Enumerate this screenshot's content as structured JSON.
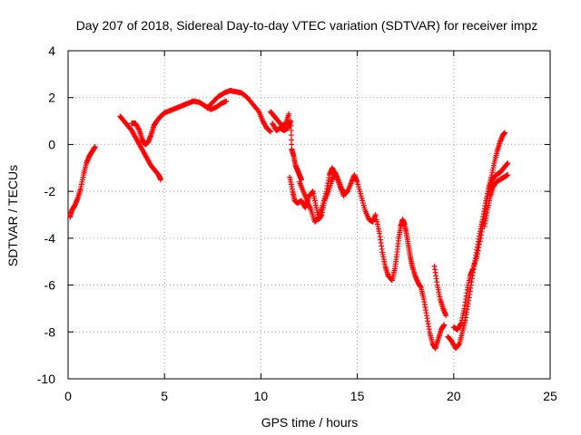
{
  "chart_data": {
    "type": "scatter",
    "title": "Day 207 of 2018, Sidereal Day-to-day VTEC variation (SDTVAR) for receiver impz",
    "xlabel": "GPS time / hours",
    "ylabel": "SDTVAR / TECUs",
    "xlim": [
      0,
      25
    ],
    "ylim": [
      -10,
      4
    ],
    "xticks": [
      0,
      5,
      10,
      15,
      20,
      25
    ],
    "yticks": [
      -10,
      -8,
      -6,
      -4,
      -2,
      0,
      2,
      4
    ],
    "grid": true,
    "marker": "+",
    "color": "#ff0000",
    "series": [
      {
        "segments": [
          [
            [
              0.1,
              -3.1
            ],
            [
              0.2,
              -2.8
            ],
            [
              0.35,
              -2.6
            ],
            [
              0.5,
              -2.3
            ],
            [
              0.65,
              -1.9
            ],
            [
              0.8,
              -1.3
            ],
            [
              0.95,
              -0.8
            ],
            [
              1.1,
              -0.5
            ],
            [
              1.25,
              -0.3
            ],
            [
              1.4,
              -0.1
            ]
          ],
          [
            [
              2.7,
              1.2
            ],
            [
              2.9,
              1.0
            ],
            [
              3.1,
              0.8
            ],
            [
              3.3,
              0.6
            ],
            [
              3.5,
              0.3
            ],
            [
              3.7,
              0.0
            ],
            [
              3.9,
              -0.3
            ],
            [
              4.1,
              -0.6
            ],
            [
              4.3,
              -0.9
            ],
            [
              4.5,
              -1.1
            ],
            [
              4.7,
              -1.3
            ],
            [
              4.8,
              -1.5
            ]
          ],
          [
            [
              3.3,
              0.9
            ],
            [
              3.5,
              0.9
            ],
            [
              3.7,
              0.6
            ],
            [
              3.85,
              0.2
            ],
            [
              4.0,
              0.0
            ],
            [
              4.15,
              0.1
            ],
            [
              4.3,
              0.4
            ],
            [
              4.45,
              0.8
            ],
            [
              4.6,
              1.0
            ],
            [
              4.8,
              1.2
            ],
            [
              5.0,
              1.35
            ],
            [
              5.3,
              1.45
            ],
            [
              5.6,
              1.55
            ],
            [
              5.9,
              1.65
            ],
            [
              6.2,
              1.75
            ],
            [
              6.5,
              1.85
            ],
            [
              6.8,
              1.8
            ],
            [
              7.1,
              1.65
            ],
            [
              7.4,
              1.5
            ],
            [
              7.7,
              1.6
            ],
            [
              7.95,
              1.75
            ],
            [
              8.2,
              1.85
            ]
          ],
          [
            [
              7.2,
              1.55
            ],
            [
              7.5,
              1.8
            ],
            [
              7.8,
              2.05
            ],
            [
              8.1,
              2.2
            ],
            [
              8.4,
              2.3
            ],
            [
              8.7,
              2.25
            ],
            [
              9.0,
              2.2
            ],
            [
              9.3,
              2.0
            ],
            [
              9.6,
              1.7
            ],
            [
              9.9,
              1.4
            ],
            [
              10.1,
              1.0
            ],
            [
              10.3,
              0.7
            ],
            [
              10.5,
              0.55
            ]
          ],
          [
            [
              10.5,
              1.4
            ],
            [
              10.7,
              1.2
            ],
            [
              10.9,
              1.0
            ],
            [
              11.1,
              0.8
            ],
            [
              11.3,
              0.9
            ],
            [
              11.45,
              1.3
            ]
          ],
          [
            [
              10.6,
              0.9
            ],
            [
              10.8,
              0.6
            ],
            [
              11.0,
              0.7
            ],
            [
              11.2,
              0.6
            ],
            [
              11.4,
              0.7
            ],
            [
              11.55,
              1.0
            ],
            [
              11.6,
              -0.2
            ],
            [
              11.7,
              -0.5
            ],
            [
              11.8,
              -0.9
            ],
            [
              11.9,
              -1.1
            ],
            [
              12.0,
              -1.3
            ],
            [
              12.1,
              -1.5
            ]
          ],
          [
            [
              11.5,
              -1.4
            ],
            [
              11.65,
              -2.0
            ],
            [
              11.75,
              -2.4
            ],
            [
              11.9,
              -2.5
            ],
            [
              12.1,
              -2.4
            ],
            [
              12.3,
              -2.7
            ],
            [
              12.5,
              -2.2
            ],
            [
              12.7,
              -2.0
            ],
            [
              12.85,
              -2.6
            ],
            [
              13.0,
              -3.2
            ],
            [
              13.15,
              -3.0
            ],
            [
              13.3,
              -2.4
            ],
            [
              13.5,
              -2.0
            ],
            [
              13.7,
              -1.5
            ],
            [
              13.85,
              -1.2
            ],
            [
              14.0,
              -1.5
            ],
            [
              14.2,
              -1.9
            ],
            [
              14.35,
              -2.1
            ],
            [
              14.5,
              -2.0
            ],
            [
              14.7,
              -1.6
            ],
            [
              14.85,
              -1.3
            ],
            [
              15.0,
              -1.6
            ],
            [
              15.2,
              -2.2
            ],
            [
              15.4,
              -2.8
            ],
            [
              15.6,
              -3.2
            ],
            [
              15.8,
              -3.3
            ],
            [
              15.95,
              -3.0
            ]
          ],
          [
            [
              12.0,
              -1.6
            ],
            [
              12.2,
              -2.0
            ],
            [
              12.4,
              -2.4
            ],
            [
              12.6,
              -2.8
            ],
            [
              12.8,
              -3.3
            ],
            [
              13.0,
              -3.1
            ],
            [
              13.2,
              -2.6
            ],
            [
              13.4,
              -2.0
            ],
            [
              13.55,
              -1.3
            ],
            [
              13.7,
              -1.0
            ],
            [
              13.9,
              -1.3
            ],
            [
              14.1,
              -1.8
            ],
            [
              14.3,
              -2.2
            ]
          ],
          [
            [
              16.0,
              -3.2
            ],
            [
              16.15,
              -3.8
            ],
            [
              16.3,
              -4.6
            ],
            [
              16.45,
              -5.2
            ],
            [
              16.6,
              -5.6
            ],
            [
              16.8,
              -5.8
            ],
            [
              16.95,
              -5.3
            ],
            [
              17.05,
              -4.7
            ],
            [
              17.15,
              -4.0
            ],
            [
              17.25,
              -3.5
            ],
            [
              17.35,
              -3.2
            ],
            [
              17.45,
              -3.4
            ],
            [
              17.55,
              -3.8
            ],
            [
              17.65,
              -4.3
            ],
            [
              17.75,
              -4.8
            ],
            [
              17.85,
              -5.2
            ],
            [
              18.0,
              -5.6
            ],
            [
              18.15,
              -5.9
            ],
            [
              18.3,
              -6.1
            ],
            [
              18.45,
              -6.6
            ],
            [
              18.6,
              -7.3
            ],
            [
              18.75,
              -8.0
            ],
            [
              18.9,
              -8.5
            ],
            [
              19.05,
              -8.7
            ],
            [
              19.2,
              -8.3
            ],
            [
              19.35,
              -7.9
            ],
            [
              19.5,
              -7.7
            ]
          ],
          [
            [
              19.0,
              -5.2
            ],
            [
              19.15,
              -6.0
            ],
            [
              19.3,
              -6.6
            ],
            [
              19.45,
              -7.0
            ],
            [
              19.6,
              -7.3
            ]
          ],
          [
            [
              19.7,
              -8.2
            ],
            [
              19.9,
              -8.4
            ],
            [
              20.1,
              -8.7
            ],
            [
              20.3,
              -8.5
            ],
            [
              20.45,
              -8.0
            ],
            [
              20.6,
              -7.5
            ],
            [
              20.75,
              -6.8
            ],
            [
              20.9,
              -6.0
            ],
            [
              21.05,
              -5.2
            ],
            [
              21.2,
              -4.5
            ],
            [
              21.35,
              -3.8
            ],
            [
              21.5,
              -3.2
            ],
            [
              21.65,
              -2.5
            ],
            [
              21.8,
              -1.9
            ],
            [
              21.95,
              -1.4
            ],
            [
              22.1,
              -0.8
            ],
            [
              22.25,
              -0.3
            ],
            [
              22.4,
              0.1
            ],
            [
              22.55,
              0.4
            ],
            [
              22.65,
              0.5
            ]
          ],
          [
            [
              20.0,
              -7.8
            ],
            [
              20.2,
              -7.9
            ],
            [
              20.4,
              -7.6
            ],
            [
              20.55,
              -7.0
            ],
            [
              20.7,
              -6.2
            ],
            [
              20.85,
              -5.6
            ],
            [
              21.0,
              -5.3
            ],
            [
              21.2,
              -4.8
            ],
            [
              21.4,
              -4.0
            ],
            [
              21.55,
              -3.2
            ],
            [
              21.7,
              -2.5
            ],
            [
              21.85,
              -1.9
            ],
            [
              22.0,
              -1.5
            ],
            [
              22.2,
              -1.3
            ],
            [
              22.4,
              -1.2
            ],
            [
              22.6,
              -1.0
            ],
            [
              22.8,
              -0.8
            ]
          ],
          [
            [
              21.6,
              -3.5
            ],
            [
              21.75,
              -2.8
            ],
            [
              21.9,
              -2.2
            ],
            [
              22.05,
              -1.8
            ],
            [
              22.2,
              -1.6
            ],
            [
              22.4,
              -1.5
            ],
            [
              22.6,
              -1.4
            ],
            [
              22.8,
              -1.3
            ]
          ]
        ]
      }
    ]
  }
}
